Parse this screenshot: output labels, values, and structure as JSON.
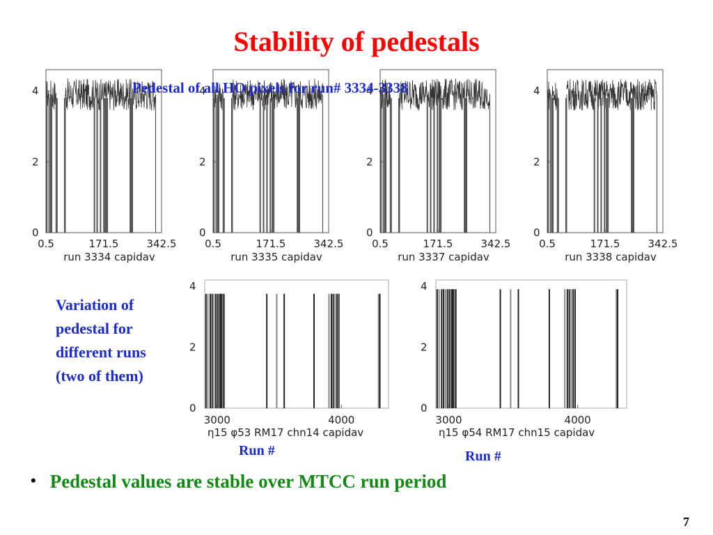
{
  "slide": {
    "title": "Stability of pedestals",
    "subtitle": "Pedestal of all HO pixels for run# 3334-3338",
    "side_note": [
      "Variation of",
      "pedestal for",
      "different runs",
      "(two of them)"
    ],
    "run_label_left": "Run #",
    "run_label_right": "Run #",
    "bullet": "Pedestal values are stable over MTCC run period",
    "page_number": "7"
  },
  "chart_data": [
    {
      "type": "bar",
      "xlabel": "run     3334 capidav",
      "ylabel": "",
      "xlim": [
        0.5,
        342.5
      ],
      "ylim": [
        0,
        4.6
      ],
      "xticks": [
        "0.5",
        "171.5",
        "342.5"
      ],
      "yticks": [
        "0",
        "2",
        "4"
      ],
      "noise_ranges": [
        [
          0.5,
          10
        ],
        [
          14,
          30
        ],
        [
          58,
          325
        ]
      ],
      "pedestal_level": 3.9,
      "zero_bars": [
        3,
        10,
        17,
        33,
        56,
        144,
        152,
        162,
        172,
        176,
        180,
        182,
        250,
        253,
        256
      ]
    },
    {
      "type": "bar",
      "xlabel": "run     3335 capidav",
      "ylabel": "",
      "xlim": [
        0.5,
        342.5
      ],
      "ylim": [
        0,
        4.6
      ],
      "xticks": [
        "0.5",
        "171.5",
        "342.5"
      ],
      "yticks": [
        "0",
        "2",
        "4"
      ],
      "noise_ranges": [
        [
          0.5,
          10
        ],
        [
          14,
          30
        ],
        [
          58,
          325
        ]
      ],
      "pedestal_level": 3.9,
      "zero_bars": [
        3,
        10,
        17,
        33,
        56,
        140,
        150,
        160,
        170,
        176,
        180,
        250,
        253,
        256
      ]
    },
    {
      "type": "bar",
      "xlabel": "run     3337 capidav",
      "ylabel": "",
      "xlim": [
        0.5,
        342.5
      ],
      "ylim": [
        0,
        4.6
      ],
      "xticks": [
        "0.5",
        "171.5",
        "342.5"
      ],
      "yticks": [
        "0",
        "2",
        "4"
      ],
      "noise_ranges": [
        [
          0.5,
          10
        ],
        [
          14,
          30
        ],
        [
          58,
          325
        ]
      ],
      "pedestal_level": 3.9,
      "zero_bars": [
        3,
        10,
        17,
        33,
        56,
        140,
        150,
        160,
        170,
        176,
        180,
        250,
        253,
        256
      ]
    },
    {
      "type": "bar",
      "xlabel": "run     3338 capidav",
      "ylabel": "",
      "xlim": [
        0.5,
        342.5
      ],
      "ylim": [
        0,
        4.6
      ],
      "xticks": [
        "0.5",
        "171.5",
        "342.5"
      ],
      "yticks": [
        "0",
        "2",
        "4"
      ],
      "noise_ranges": [
        [
          0.5,
          10
        ],
        [
          14,
          30
        ],
        [
          58,
          325
        ]
      ],
      "pedestal_level": 3.9,
      "zero_bars": [
        3,
        10,
        17,
        33,
        56,
        140,
        150,
        160,
        170,
        176,
        180,
        250,
        253,
        256
      ]
    },
    {
      "type": "bar",
      "xlabel": "η15 φ53  RM17 chn14  capidav",
      "ylabel": "",
      "xlim": [
        2900,
        4380
      ],
      "ylim": [
        0,
        4.2
      ],
      "xticks": [
        "3000",
        "4000"
      ],
      "yticks": [
        "0",
        "2",
        "4"
      ],
      "bars": [
        {
          "x": 2910,
          "y": 3.75
        },
        {
          "x": 2925,
          "y": 3.75
        },
        {
          "x": 2945,
          "y": 3.75
        },
        {
          "x": 2960,
          "y": 3.75
        },
        {
          "x": 2975,
          "y": 3.75
        },
        {
          "x": 2990,
          "y": 3.75
        },
        {
          "x": 3005,
          "y": 3.75
        },
        {
          "x": 3015,
          "y": 3.75
        },
        {
          "x": 3025,
          "y": 3.75
        },
        {
          "x": 3035,
          "y": 3.75
        },
        {
          "x": 3045,
          "y": 3.75
        },
        {
          "x": 3055,
          "y": 3.75
        },
        {
          "x": 3400,
          "y": 3.75
        },
        {
          "x": 3480,
          "y": 3.75
        },
        {
          "x": 3540,
          "y": 3.75
        },
        {
          "x": 3780,
          "y": 3.75
        },
        {
          "x": 3900,
          "y": 3.75
        },
        {
          "x": 3920,
          "y": 3.75
        },
        {
          "x": 3935,
          "y": 3.75
        },
        {
          "x": 3950,
          "y": 3.75
        },
        {
          "x": 3965,
          "y": 3.75
        },
        {
          "x": 3980,
          "y": 3.75
        },
        {
          "x": 4300,
          "y": 3.75
        },
        {
          "x": 4310,
          "y": 3.75
        }
      ]
    },
    {
      "type": "bar",
      "xlabel": "η15 φ54  RM17 chn15  capidav",
      "ylabel": "",
      "xlim": [
        2900,
        4380
      ],
      "ylim": [
        0,
        4.2
      ],
      "xticks": [
        "3000",
        "4000"
      ],
      "yticks": [
        "0",
        "2",
        "4"
      ],
      "bars": [
        {
          "x": 2910,
          "y": 3.9
        },
        {
          "x": 2925,
          "y": 3.9
        },
        {
          "x": 2945,
          "y": 3.9
        },
        {
          "x": 2960,
          "y": 3.9
        },
        {
          "x": 2975,
          "y": 3.9
        },
        {
          "x": 2990,
          "y": 3.9
        },
        {
          "x": 3005,
          "y": 3.9
        },
        {
          "x": 3015,
          "y": 3.9
        },
        {
          "x": 3025,
          "y": 3.9
        },
        {
          "x": 3035,
          "y": 3.9
        },
        {
          "x": 3045,
          "y": 3.9
        },
        {
          "x": 3055,
          "y": 3.9
        },
        {
          "x": 3400,
          "y": 3.9
        },
        {
          "x": 3480,
          "y": 3.9
        },
        {
          "x": 3540,
          "y": 3.9
        },
        {
          "x": 3780,
          "y": 3.9
        },
        {
          "x": 3900,
          "y": 3.9
        },
        {
          "x": 3920,
          "y": 3.9
        },
        {
          "x": 3935,
          "y": 3.9
        },
        {
          "x": 3950,
          "y": 3.9
        },
        {
          "x": 3965,
          "y": 3.9
        },
        {
          "x": 3980,
          "y": 3.9
        },
        {
          "x": 4300,
          "y": 3.9
        },
        {
          "x": 4310,
          "y": 3.9
        }
      ]
    }
  ]
}
